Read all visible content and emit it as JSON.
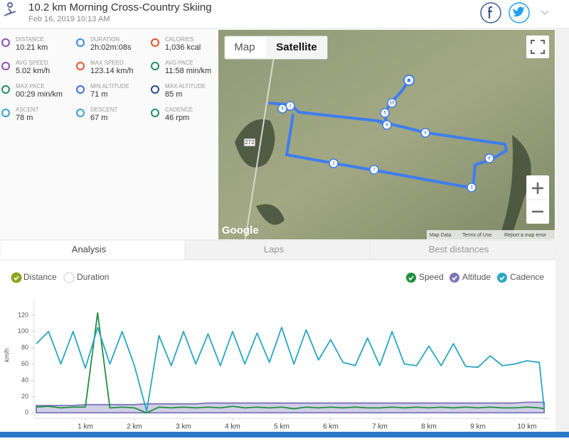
{
  "header": {
    "title": "10.2 km Morning Cross-Country Skiing",
    "date": "Feb 16, 2019 10:13 AM"
  },
  "stats": [
    {
      "label": "DISTANCE",
      "value": "10.21 km"
    },
    {
      "label": "DURATION",
      "value": "2h:02m:08s"
    },
    {
      "label": "CALORIES",
      "value": "1,036 kcal"
    },
    {
      "label": "AVG SPEED",
      "value": "5.02 km/h"
    },
    {
      "label": "MAX SPEED",
      "value": "123.14 km/h"
    },
    {
      "label": "AVG PACE",
      "value": "11:58 min/km"
    },
    {
      "label": "MAX PACE",
      "value": "00:29 min/km"
    },
    {
      "label": "MIN ALTITUDE",
      "value": "71 m"
    },
    {
      "label": "MAX ALTITUDE",
      "value": "85 m"
    },
    {
      "label": "ASCENT",
      "value": "78 m"
    },
    {
      "label": "DESCENT",
      "value": "67 m"
    },
    {
      "label": "CADENCE",
      "value": "46 rpm"
    }
  ],
  "map": {
    "buttons": [
      "Map",
      "Satellite"
    ],
    "road_label": "272",
    "provider": "Google",
    "footer": [
      "Map Data",
      "Terms of Use",
      "Report a map error"
    ],
    "markers": [
      "6",
      "1",
      "5",
      "10",
      "9",
      "4",
      "8",
      "3",
      "7",
      "2"
    ]
  },
  "tabs": [
    "Analysis",
    "Laps",
    "Best distances"
  ],
  "x_axis_options": [
    "Distance",
    "Duration"
  ],
  "chart_data": {
    "type": "line",
    "ylabel": "km/h",
    "x": [
      0,
      0.25,
      0.5,
      0.75,
      1,
      1.25,
      1.5,
      1.75,
      2,
      2.25,
      2.5,
      2.75,
      3,
      3.25,
      3.5,
      3.75,
      4,
      4.25,
      4.5,
      4.75,
      5,
      5.25,
      5.5,
      5.75,
      6,
      6.25,
      6.5,
      6.75,
      7,
      7.25,
      7.5,
      7.75,
      8,
      8.25,
      8.5,
      8.75,
      9,
      9.25,
      9.5,
      9.75,
      10,
      10.25,
      10.35
    ],
    "series": [
      {
        "name": "Speed",
        "color": "#1f8f3f",
        "values": [
          7,
          8,
          6,
          7,
          7,
          123,
          6,
          7,
          6,
          0,
          7,
          6,
          7,
          6,
          7,
          6,
          8,
          6,
          7,
          6,
          7,
          5,
          7,
          6,
          7,
          6,
          7,
          6,
          6,
          7,
          6,
          7,
          6,
          7,
          6,
          7,
          6,
          7,
          6,
          6,
          7,
          6,
          5
        ]
      },
      {
        "name": "Altitude",
        "color": "#7a76b8",
        "values": [
          9,
          9,
          9,
          9,
          10,
          10,
          10,
          10,
          10,
          11,
          11,
          11,
          11,
          11,
          12,
          12,
          12,
          12,
          12,
          12,
          12,
          12,
          12,
          12,
          12,
          12,
          12,
          12,
          12,
          12,
          12,
          12,
          12,
          12,
          12,
          12,
          12,
          12,
          12,
          12,
          13,
          13,
          13
        ]
      },
      {
        "name": "Cadence",
        "color": "#2aa6c0",
        "values": [
          85,
          100,
          60,
          100,
          55,
          105,
          60,
          100,
          58,
          2,
          95,
          58,
          100,
          60,
          97,
          58,
          100,
          60,
          98,
          62,
          105,
          60,
          102,
          65,
          90,
          62,
          58,
          92,
          58,
          100,
          60,
          58,
          82,
          58,
          85,
          57,
          56,
          70,
          58,
          60,
          64,
          62,
          5
        ]
      }
    ],
    "xlim": [
      0,
      10.45
    ],
    "ylim": [
      -5,
      140
    ],
    "xticks": [
      {
        "value": 1,
        "label": "1 km"
      },
      {
        "value": 2,
        "label": "2 km"
      },
      {
        "value": 3,
        "label": "3 km"
      },
      {
        "value": 4,
        "label": "4 km"
      },
      {
        "value": 5,
        "label": "5 km"
      },
      {
        "value": 6,
        "label": "6 km"
      },
      {
        "value": 7,
        "label": "7 km"
      },
      {
        "value": 8,
        "label": "8 km"
      },
      {
        "value": 9,
        "label": "9 km"
      },
      {
        "value": 10,
        "label": "10 km"
      }
    ],
    "yticks": [
      0,
      20,
      40,
      60,
      80,
      100,
      120
    ]
  }
}
